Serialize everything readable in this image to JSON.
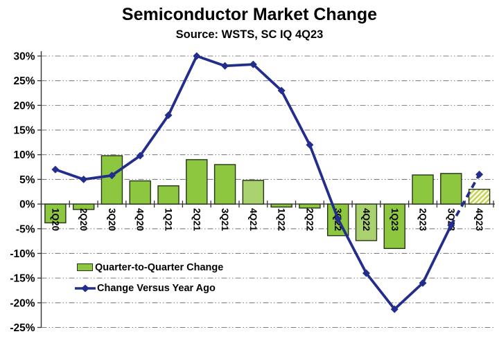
{
  "title": "Semiconductor Market Change",
  "subtitle": "Source: WSTS, SC IQ 4Q23",
  "legend": {
    "bar_label": "Quarter-to-Quarter Change",
    "line_label": "Change Versus Year Ago"
  },
  "colors": {
    "bar_fill": "#8DC63F",
    "bar_fill_light": "#A9D26E",
    "bar_border": "#26331A",
    "hatch_stripe": "#C7D45A",
    "hatch_bg": "#FEFEF4",
    "line": "#232E8C",
    "gridline": "#7F7F7F",
    "axis": "#333333",
    "text": "#000000"
  },
  "chart_data": {
    "type": "combo-bar-line",
    "title": "Semiconductor Market Change",
    "subtitle": "Source: WSTS, SC IQ 4Q23",
    "categories": [
      "1Q20",
      "2Q20",
      "3Q20",
      "4Q20",
      "1Q21",
      "2Q21",
      "3Q21",
      "4Q21",
      "1Q22",
      "2Q22",
      "3Q22",
      "4Q22",
      "1Q23",
      "2Q23",
      "3Q23",
      "4Q23"
    ],
    "series": [
      {
        "name": "Quarter-to-Quarter Change",
        "type": "bar",
        "values": [
          -3.8,
          -1.1,
          9.8,
          4.7,
          3.7,
          9,
          8,
          4.8,
          -0.6,
          -0.8,
          -6.4,
          -7.4,
          -9,
          5.9,
          6.2,
          3
        ],
        "light_shaded_categories": [
          "4Q21",
          "4Q22"
        ],
        "hatched_forecast_category": "4Q23"
      },
      {
        "name": "Change Versus Year Ago",
        "type": "line",
        "values": [
          7,
          5,
          5.8,
          9.8,
          18,
          30,
          28,
          28.3,
          23,
          12,
          -3,
          -14,
          -21.3,
          -16,
          -4.3,
          6
        ],
        "marker": "diamond",
        "dashed_forecast_from": "3Q23"
      }
    ],
    "ylim": [
      -25,
      30
    ],
    "ytick_step": 5,
    "ytick_labels": [
      "30%",
      "25%",
      "20%",
      "15%",
      "10%",
      "5%",
      "0%",
      "-5%",
      "-10%",
      "-15%",
      "-20%",
      "-25%"
    ],
    "grid": "horizontal-dash-dot",
    "legend_position": "inside-lower-left"
  }
}
